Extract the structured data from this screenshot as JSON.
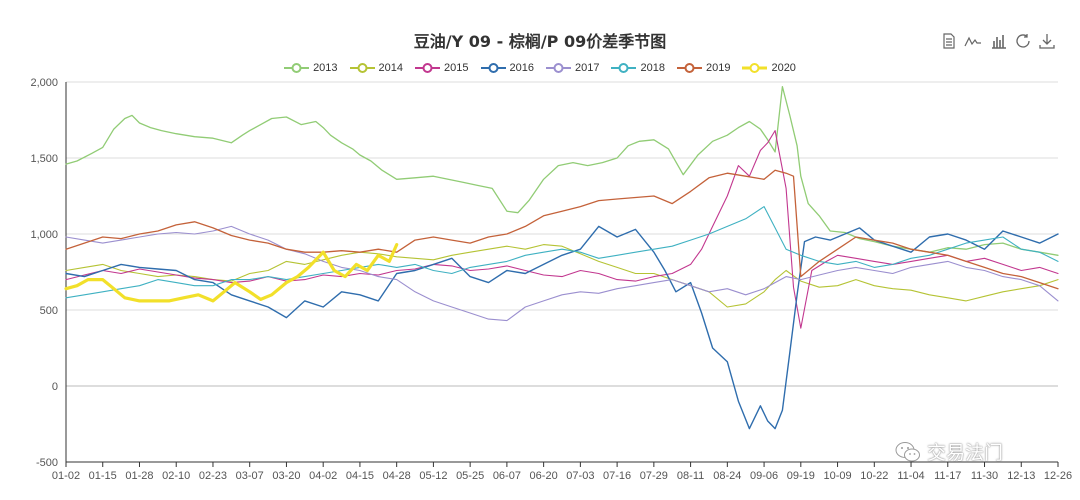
{
  "toolbox": {
    "icons": [
      "data-view-icon",
      "line-chart-icon",
      "bar-chart-icon",
      "restore-icon",
      "download-icon"
    ]
  },
  "watermark": {
    "text": "交易法门",
    "icon": "wechat-icon"
  },
  "chart_data": {
    "type": "line",
    "title": "豆油/Y 09 - 棕榈/P 09价差季节图",
    "xlabel": "",
    "ylabel": "",
    "ylim": [
      -500,
      2000
    ],
    "yticks": [
      -500,
      0,
      500,
      "1,000",
      "1,500",
      "2,000"
    ],
    "xticks": [
      "01-02",
      "01-15",
      "01-28",
      "02-10",
      "02-23",
      "03-07",
      "03-20",
      "04-02",
      "04-15",
      "04-28",
      "05-12",
      "05-25",
      "06-07",
      "06-20",
      "07-03",
      "07-16",
      "07-29",
      "08-11",
      "08-24",
      "09-06",
      "09-19",
      "10-09",
      "10-22",
      "11-04",
      "11-17",
      "11-30",
      "12-13",
      "12-26"
    ],
    "grid": true,
    "legend_position": "top-center",
    "x_note": "x values are indices into xticks (fractional allowed)",
    "series": [
      {
        "name": "2013",
        "color": "#91cc75",
        "width": 1.3,
        "x": [
          0,
          0.3,
          0.7,
          1,
          1.3,
          1.6,
          1.8,
          2,
          2.3,
          2.6,
          3,
          3.5,
          4,
          4.5,
          4.8,
          5,
          5.3,
          5.6,
          6,
          6.4,
          6.8,
          7,
          7.2,
          7.5,
          7.8,
          8,
          8.3,
          8.6,
          9,
          9.5,
          10,
          10.4,
          10.8,
          11.2,
          11.6,
          12,
          12.3,
          12.6,
          13,
          13.4,
          13.8,
          14.2,
          14.6,
          15,
          15.3,
          15.6,
          16,
          16.4,
          16.8,
          17.2,
          17.6,
          18,
          18.3,
          18.6,
          18.9,
          19.1,
          19.3,
          19.5,
          19.7,
          19.9,
          20,
          20.2,
          20.5,
          20.8,
          21.2,
          21.6,
          22,
          22.5,
          23,
          23.5,
          24,
          24.5,
          25,
          25.5,
          26,
          26.5,
          27
        ],
        "y": [
          1460,
          1480,
          1530,
          1570,
          1690,
          1760,
          1780,
          1730,
          1700,
          1680,
          1660,
          1640,
          1630,
          1600,
          1650,
          1680,
          1720,
          1760,
          1770,
          1720,
          1740,
          1700,
          1650,
          1600,
          1560,
          1520,
          1480,
          1420,
          1360,
          1370,
          1380,
          1360,
          1340,
          1320,
          1300,
          1150,
          1140,
          1220,
          1360,
          1450,
          1470,
          1450,
          1470,
          1500,
          1580,
          1610,
          1620,
          1560,
          1390,
          1520,
          1610,
          1650,
          1700,
          1740,
          1690,
          1620,
          1540,
          1970,
          1780,
          1580,
          1380,
          1200,
          1120,
          1020,
          1010,
          970,
          950,
          920,
          900,
          880,
          910,
          900,
          930,
          940,
          900,
          880,
          860
        ]
      },
      {
        "name": "2014",
        "color": "#b5c334",
        "width": 1.1,
        "x": [
          0,
          0.5,
          1,
          1.5,
          2,
          2.5,
          3,
          3.5,
          4,
          4.5,
          5,
          5.5,
          6,
          6.5,
          7,
          7.5,
          8,
          8.5,
          9,
          9.5,
          10,
          10.5,
          11,
          11.5,
          12,
          12.5,
          13,
          13.5,
          14,
          14.5,
          15,
          15.5,
          16,
          16.5,
          17,
          17.5,
          18,
          18.5,
          19,
          19.3,
          19.6,
          20,
          20.5,
          21,
          21.5,
          22,
          22.5,
          23,
          23.5,
          24,
          24.5,
          25,
          25.5,
          26,
          26.5,
          27
        ],
        "y": [
          760,
          780,
          800,
          760,
          740,
          720,
          730,
          720,
          700,
          690,
          740,
          760,
          820,
          800,
          830,
          860,
          880,
          870,
          850,
          840,
          830,
          860,
          880,
          900,
          920,
          900,
          930,
          920,
          870,
          820,
          780,
          740,
          740,
          700,
          660,
          620,
          520,
          540,
          620,
          700,
          760,
          690,
          650,
          660,
          700,
          660,
          640,
          630,
          600,
          580,
          560,
          590,
          620,
          640,
          660,
          700
        ]
      },
      {
        "name": "2015",
        "color": "#c2378f",
        "width": 1.1,
        "x": [
          0,
          0.5,
          1,
          1.5,
          2,
          2.5,
          3,
          3.5,
          4,
          4.5,
          5,
          5.5,
          6,
          6.5,
          7,
          7.5,
          8,
          8.5,
          9,
          9.5,
          10,
          10.5,
          11,
          11.5,
          12,
          12.5,
          13,
          13.5,
          14,
          14.5,
          15,
          15.5,
          16,
          16.5,
          17,
          17.3,
          17.6,
          18,
          18.3,
          18.6,
          18.9,
          19.1,
          19.3,
          19.4,
          19.6,
          19.8,
          20,
          20.3,
          20.7,
          21,
          21.5,
          22,
          22.5,
          23,
          23.5,
          24,
          24.5,
          25,
          25.5,
          26,
          26.5,
          27
        ],
        "y": [
          700,
          730,
          760,
          740,
          770,
          750,
          730,
          710,
          700,
          680,
          690,
          720,
          690,
          700,
          730,
          720,
          740,
          730,
          760,
          770,
          800,
          790,
          760,
          770,
          790,
          760,
          730,
          720,
          760,
          740,
          700,
          690,
          720,
          740,
          800,
          900,
          1050,
          1250,
          1450,
          1380,
          1550,
          1600,
          1680,
          1550,
          1300,
          650,
          380,
          760,
          820,
          860,
          840,
          820,
          800,
          820,
          840,
          860,
          820,
          840,
          800,
          760,
          780,
          740
        ]
      },
      {
        "name": "2016",
        "color": "#2f6dad",
        "width": 1.4,
        "x": [
          0,
          0.5,
          1,
          1.5,
          2,
          2.5,
          3,
          3.5,
          4,
          4.5,
          5,
          5.5,
          6,
          6.5,
          7,
          7.5,
          8,
          8.5,
          9,
          9.5,
          10,
          10.5,
          11,
          11.5,
          12,
          12.5,
          13,
          13.5,
          14,
          14.5,
          15,
          15.5,
          16,
          16.3,
          16.6,
          17,
          17.3,
          17.6,
          18,
          18.3,
          18.6,
          18.9,
          19.1,
          19.3,
          19.5,
          19.7,
          19.9,
          20.1,
          20.4,
          20.8,
          21.2,
          21.6,
          22,
          22.5,
          23,
          23.5,
          24,
          24.5,
          25,
          25.5,
          26,
          26.5,
          27
        ],
        "y": [
          740,
          720,
          760,
          800,
          780,
          770,
          760,
          700,
          680,
          600,
          560,
          520,
          450,
          560,
          520,
          620,
          600,
          560,
          740,
          760,
          800,
          840,
          720,
          680,
          760,
          740,
          800,
          860,
          900,
          1050,
          980,
          1030,
          880,
          760,
          620,
          680,
          480,
          250,
          160,
          -100,
          -280,
          -130,
          -230,
          -280,
          -160,
          220,
          600,
          950,
          980,
          960,
          1000,
          1040,
          960,
          920,
          880,
          980,
          1000,
          960,
          900,
          1020,
          980,
          940,
          1000
        ]
      },
      {
        "name": "2017",
        "color": "#9b8fcf",
        "width": 1.1,
        "x": [
          0,
          0.5,
          1,
          1.5,
          2,
          2.5,
          3,
          3.5,
          4,
          4.5,
          5,
          5.5,
          6,
          6.5,
          7,
          7.5,
          8,
          8.5,
          9,
          9.5,
          10,
          10.5,
          11,
          11.5,
          12,
          12.5,
          13,
          13.5,
          14,
          14.5,
          15,
          15.5,
          16,
          16.5,
          17,
          17.5,
          18,
          18.5,
          19,
          19.3,
          19.6,
          20,
          20.5,
          21,
          21.5,
          22,
          22.5,
          23,
          23.5,
          24,
          24.5,
          25,
          25.5,
          26,
          26.5,
          27
        ],
        "y": [
          980,
          960,
          940,
          960,
          980,
          1000,
          1010,
          1000,
          1020,
          1050,
          1000,
          960,
          900,
          870,
          820,
          780,
          760,
          720,
          700,
          620,
          560,
          520,
          480,
          440,
          430,
          520,
          560,
          600,
          620,
          610,
          640,
          660,
          680,
          700,
          660,
          620,
          640,
          600,
          640,
          680,
          720,
          700,
          730,
          760,
          780,
          760,
          740,
          780,
          800,
          820,
          780,
          760,
          720,
          700,
          660,
          560
        ]
      },
      {
        "name": "2018",
        "color": "#3fb1c2",
        "width": 1.1,
        "x": [
          0,
          0.5,
          1,
          1.5,
          2,
          2.5,
          3,
          3.5,
          4,
          4.5,
          5,
          5.5,
          6,
          6.5,
          7,
          7.5,
          8,
          8.5,
          9,
          9.5,
          10,
          10.5,
          11,
          11.5,
          12,
          12.5,
          13,
          13.5,
          14,
          14.5,
          15,
          15.5,
          16,
          16.5,
          17,
          17.5,
          18,
          18.5,
          19,
          19.3,
          19.6,
          20,
          20.5,
          21,
          21.5,
          22,
          22.5,
          23,
          23.5,
          24,
          24.5,
          25,
          25.5,
          26,
          26.5,
          27
        ],
        "y": [
          580,
          600,
          620,
          640,
          660,
          700,
          680,
          660,
          660,
          700,
          700,
          720,
          700,
          720,
          740,
          760,
          780,
          800,
          780,
          800,
          760,
          740,
          780,
          800,
          820,
          860,
          880,
          900,
          880,
          840,
          860,
          880,
          900,
          920,
          960,
          1000,
          1050,
          1100,
          1180,
          1040,
          900,
          860,
          820,
          800,
          820,
          780,
          800,
          840,
          860,
          900,
          940,
          960,
          980,
          900,
          880,
          820
        ]
      },
      {
        "name": "2019",
        "color": "#c4623a",
        "width": 1.3,
        "x": [
          0,
          0.5,
          1,
          1.5,
          2,
          2.5,
          3,
          3.5,
          4,
          4.5,
          5,
          5.5,
          6,
          6.5,
          7,
          7.5,
          8,
          8.5,
          9,
          9.5,
          10,
          10.5,
          11,
          11.5,
          12,
          12.5,
          13,
          13.5,
          14,
          14.5,
          15,
          15.5,
          16,
          16.5,
          17,
          17.5,
          18,
          18.5,
          19,
          19.3,
          19.6,
          19.8,
          20,
          20.5,
          21,
          21.5,
          22,
          22.5,
          23,
          23.5,
          24,
          24.5,
          25,
          25.5,
          26,
          26.5,
          27
        ],
        "y": [
          900,
          940,
          980,
          970,
          1000,
          1020,
          1060,
          1080,
          1040,
          990,
          960,
          940,
          900,
          880,
          880,
          890,
          880,
          900,
          880,
          960,
          980,
          960,
          940,
          980,
          1000,
          1050,
          1120,
          1150,
          1180,
          1220,
          1230,
          1240,
          1250,
          1200,
          1280,
          1370,
          1400,
          1380,
          1360,
          1420,
          1400,
          1380,
          720,
          820,
          900,
          980,
          960,
          940,
          900,
          880,
          860,
          820,
          780,
          740,
          720,
          680,
          640
        ]
      },
      {
        "name": "2020",
        "color": "#f2e02a",
        "width": 3.2,
        "x": [
          0,
          0.3,
          0.6,
          1,
          1.3,
          1.6,
          2,
          2.4,
          2.8,
          3.2,
          3.6,
          4,
          4.3,
          4.6,
          5,
          5.3,
          5.6,
          6,
          6.3,
          6.6,
          7,
          7.3,
          7.6,
          7.9,
          8.2,
          8.5,
          8.8,
          9
        ],
        "y": [
          640,
          660,
          700,
          700,
          640,
          580,
          560,
          560,
          560,
          580,
          600,
          560,
          620,
          680,
          620,
          570,
          600,
          680,
          720,
          780,
          880,
          760,
          720,
          800,
          760,
          860,
          820,
          930
        ]
      }
    ]
  }
}
